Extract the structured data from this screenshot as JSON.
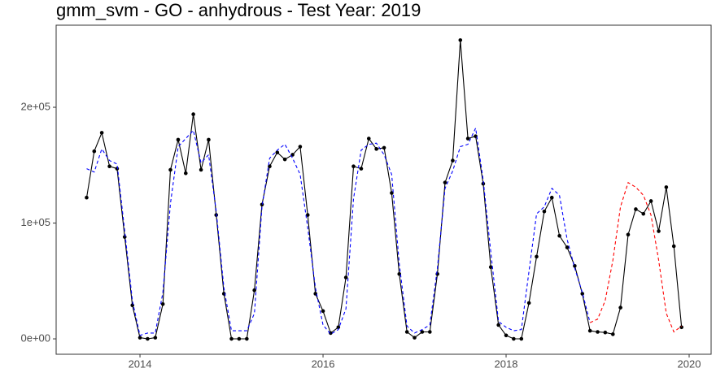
{
  "chart_data": {
    "type": "line",
    "title": "gmm_svm - GO - anhydrous - Test Year: 2019",
    "x": [
      2013.417,
      2013.5,
      2013.583,
      2013.667,
      2013.75,
      2013.833,
      2013.917,
      2014,
      2014.083,
      2014.167,
      2014.25,
      2014.333,
      2014.417,
      2014.5,
      2014.583,
      2014.667,
      2014.75,
      2014.833,
      2014.917,
      2015,
      2015.083,
      2015.167,
      2015.25,
      2015.333,
      2015.417,
      2015.5,
      2015.583,
      2015.667,
      2015.75,
      2015.833,
      2015.917,
      2016,
      2016.083,
      2016.167,
      2016.25,
      2016.333,
      2016.417,
      2016.5,
      2016.583,
      2016.667,
      2016.75,
      2016.833,
      2016.917,
      2017,
      2017.083,
      2017.167,
      2017.25,
      2017.333,
      2017.417,
      2017.5,
      2017.583,
      2017.667,
      2017.75,
      2017.833,
      2017.917,
      2018,
      2018.083,
      2018.167,
      2018.25,
      2018.333,
      2018.417,
      2018.5,
      2018.583,
      2018.667,
      2018.75,
      2018.833,
      2018.917,
      2019,
      2019.083,
      2019.167,
      2019.25,
      2019.333,
      2019.417,
      2019.5,
      2019.583,
      2019.667,
      2019.75,
      2019.833,
      2019.917
    ],
    "series": [
      {
        "color": "#000000",
        "linestyle": "solid",
        "markers": true,
        "values": [
          122000,
          162000,
          178000,
          149000,
          147000,
          88000,
          29000,
          1000,
          0,
          1000,
          30000,
          146000,
          172000,
          143000,
          194000,
          146000,
          172000,
          107000,
          39000,
          0,
          0,
          0,
          42000,
          116000,
          149000,
          161000,
          155000,
          159000,
          166000,
          107000,
          39000,
          24000,
          5000,
          10000,
          53000,
          149000,
          147000,
          173000,
          164000,
          165000,
          126000,
          56000,
          6000,
          1000,
          6000,
          6000,
          56000,
          135000,
          154000,
          258000,
          173000,
          175000,
          134000,
          62000,
          12000,
          3000,
          0,
          0,
          31000,
          71000,
          110000,
          122000,
          89000,
          79000,
          63000,
          39000,
          7000,
          6000,
          5500,
          4000,
          27000,
          90000,
          112000,
          108000,
          119000,
          93000,
          131000,
          80000,
          10000
        ]
      },
      {
        "color": "#0000ff",
        "linestyle": "dashed",
        "markers": false,
        "values": [
          147000,
          144000,
          164000,
          154000,
          151000,
          93000,
          33000,
          3000,
          5000,
          5000,
          40000,
          117000,
          166000,
          173000,
          180000,
          152000,
          159000,
          110000,
          44000,
          7000,
          7000,
          7000,
          22000,
          114000,
          156000,
          163000,
          168000,
          156000,
          142000,
          96000,
          44000,
          12000,
          4000,
          8000,
          26000,
          121000,
          163000,
          168000,
          169000,
          159000,
          142000,
          65000,
          11000,
          5000,
          8000,
          12000,
          61000,
          130000,
          145000,
          166000,
          168000,
          182000,
          137000,
          75000,
          15000,
          10000,
          7000,
          8000,
          58000,
          108000,
          114000,
          130000,
          124000,
          86000,
          61000,
          40000,
          14000,
          null,
          null,
          null,
          null,
          null,
          null,
          null,
          null,
          null,
          null,
          null,
          null
        ]
      },
      {
        "color": "#ff0000",
        "linestyle": "dashed",
        "markers": false,
        "values": [
          null,
          null,
          null,
          null,
          null,
          null,
          null,
          null,
          null,
          null,
          null,
          null,
          null,
          null,
          null,
          null,
          null,
          null,
          null,
          null,
          null,
          null,
          null,
          null,
          null,
          null,
          null,
          null,
          null,
          null,
          null,
          null,
          null,
          null,
          null,
          null,
          null,
          null,
          null,
          null,
          null,
          null,
          null,
          null,
          null,
          null,
          null,
          null,
          null,
          null,
          null,
          null,
          null,
          null,
          null,
          null,
          null,
          null,
          null,
          null,
          null,
          null,
          null,
          null,
          null,
          null,
          14000,
          17000,
          33000,
          68000,
          114000,
          135000,
          131000,
          124000,
          107000,
          68000,
          22000,
          6000,
          11000
        ]
      }
    ],
    "xlim": [
      2013.084,
      2020.24
    ],
    "xticks": [
      2014,
      2016,
      2018,
      2020
    ],
    "ylim": [
      -13300,
      270900
    ],
    "yticks": [
      {
        "value": 0,
        "label": "0e+00"
      },
      {
        "value": 100000,
        "label": "1e+05"
      },
      {
        "value": 200000,
        "label": "2e+05"
      }
    ],
    "grid": false
  }
}
